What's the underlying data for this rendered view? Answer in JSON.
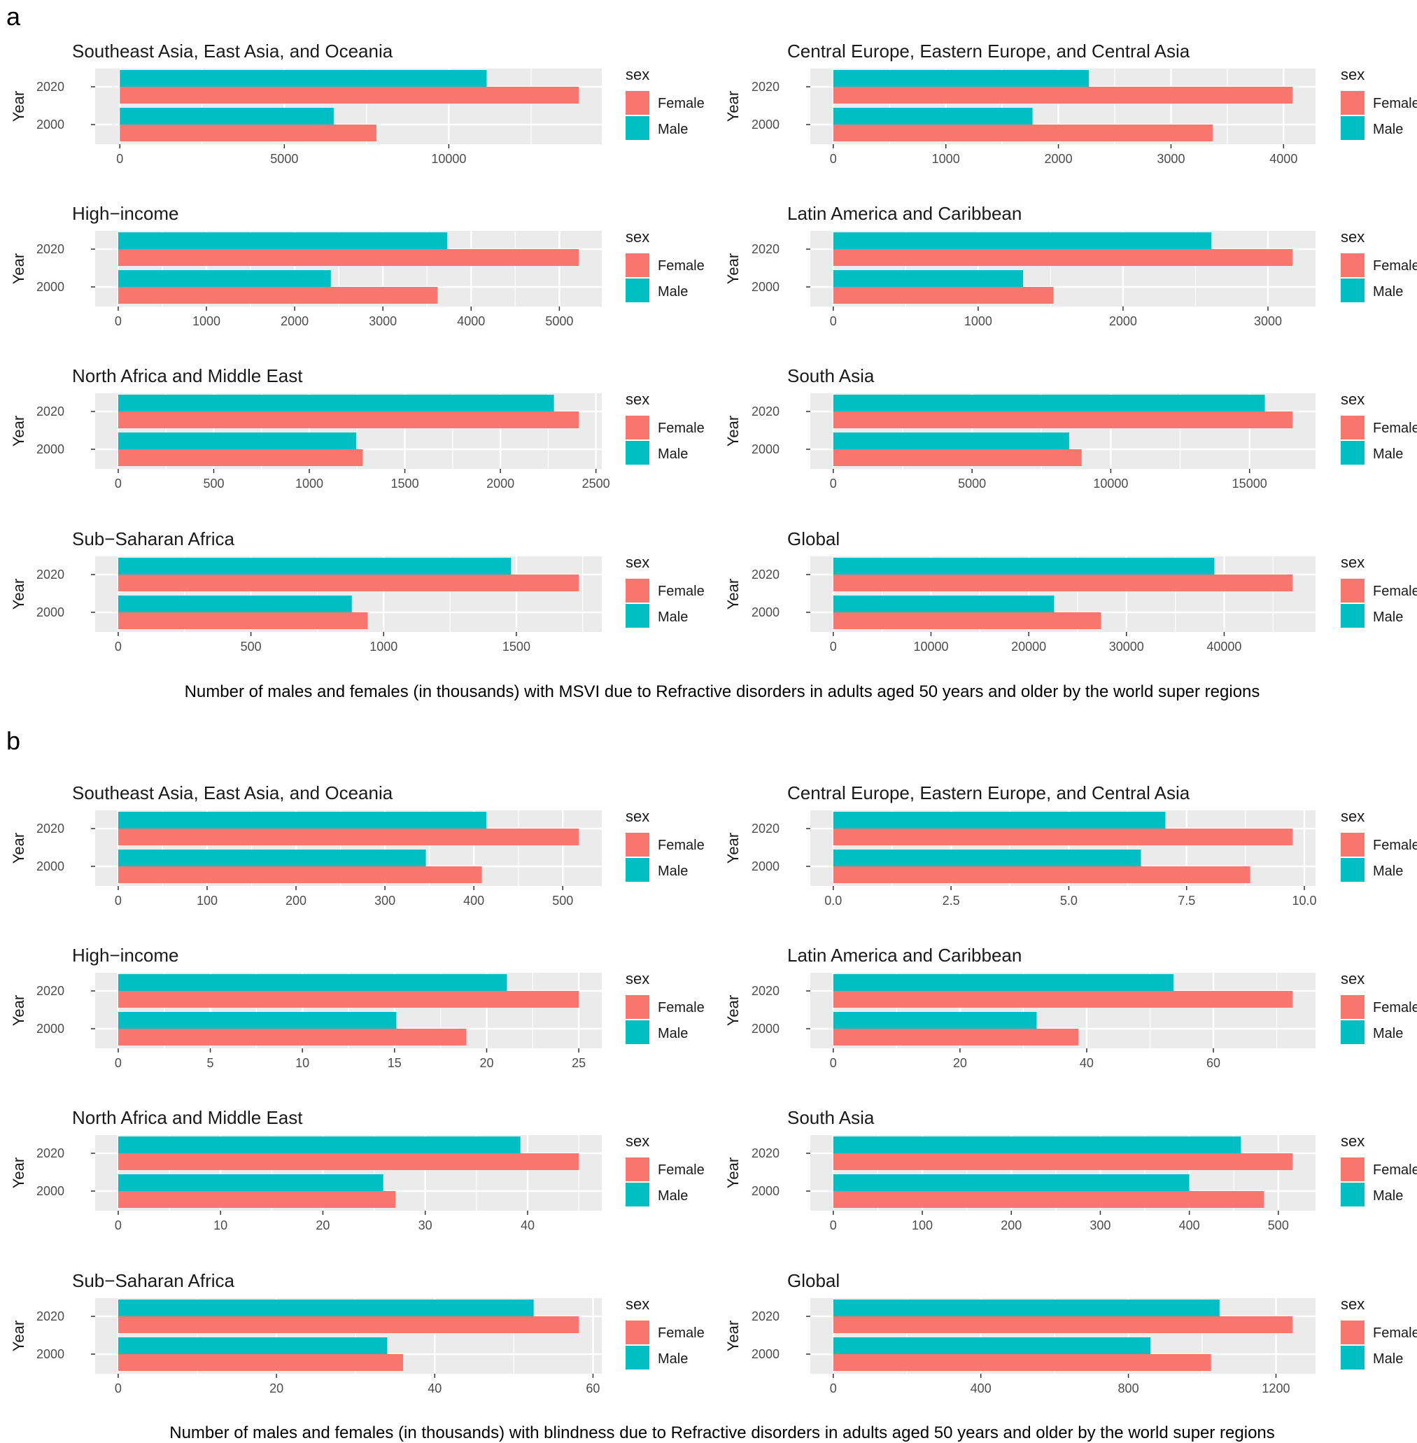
{
  "series_names": [
    "Female",
    "Male"
  ],
  "years": [
    "2020",
    "2000"
  ],
  "legend_title": "sex",
  "y_axis_label": "Year",
  "colors": {
    "Female": "#F8766D",
    "Male": "#00BFC4",
    "panel_bg": "#EBEBEB",
    "grid": "#FFFFFF",
    "text": "#1A1A1A",
    "tick_text": "#4D4D4D"
  },
  "figure_a": {
    "letter": "a",
    "caption": "Number of males and females (in thousands) with MSVI due to Refractive disorders in adults aged 50 years and older by the world super regions"
  },
  "figure_b": {
    "letter": "b",
    "caption": "Number of males and females (in thousands) with blindness due to Refractive disorders in adults aged 50 years and older by the world super regions"
  },
  "chart_data": [
    {
      "figure": "a",
      "type": "bar",
      "title": "Southeast Asia, East Asia, and Oceania",
      "categories": [
        "2020",
        "2000"
      ],
      "series": [
        {
          "name": "Female",
          "values": [
            13950,
            7800
          ]
        },
        {
          "name": "Male",
          "values": [
            11150,
            6500
          ]
        }
      ],
      "xlim": [
        -750,
        14650
      ],
      "ticks": [
        0,
        5000,
        10000
      ],
      "tick_labels": [
        "0",
        "5000",
        "10000"
      ],
      "ylabel": "Year",
      "legend_title": "sex"
    },
    {
      "figure": "a",
      "type": "bar",
      "title": "Central Europe, Eastern Europe, and Central Asia",
      "categories": [
        "2020",
        "2000"
      ],
      "series": [
        {
          "name": "Female",
          "values": [
            4080,
            3370
          ]
        },
        {
          "name": "Male",
          "values": [
            2270,
            1770
          ]
        }
      ],
      "xlim": [
        -204,
        4284
      ],
      "ticks": [
        0,
        1000,
        2000,
        3000,
        4000
      ],
      "tick_labels": [
        "0",
        "1000",
        "2000",
        "3000",
        "4000"
      ],
      "ylabel": "Year",
      "legend_title": "sex"
    },
    {
      "figure": "a",
      "type": "bar",
      "title": "High−income",
      "categories": [
        "2020",
        "2000"
      ],
      "series": [
        {
          "name": "Female",
          "values": [
            5220,
            3620
          ]
        },
        {
          "name": "Male",
          "values": [
            3730,
            2410
          ]
        }
      ],
      "xlim": [
        -261,
        5481
      ],
      "ticks": [
        0,
        1000,
        2000,
        3000,
        4000,
        5000
      ],
      "tick_labels": [
        "0",
        "1000",
        "2000",
        "3000",
        "4000",
        "5000"
      ],
      "ylabel": "Year",
      "legend_title": "sex"
    },
    {
      "figure": "a",
      "type": "bar",
      "title": "Latin America and Caribbean",
      "categories": [
        "2020",
        "2000"
      ],
      "series": [
        {
          "name": "Female",
          "values": [
            3170,
            1520
          ]
        },
        {
          "name": "Male",
          "values": [
            2610,
            1310
          ]
        }
      ],
      "xlim": [
        -158.5,
        3328.5
      ],
      "ticks": [
        0,
        1000,
        2000,
        3000
      ],
      "tick_labels": [
        "0",
        "1000",
        "2000",
        "3000"
      ],
      "ylabel": "Year",
      "legend_title": "sex"
    },
    {
      "figure": "a",
      "type": "bar",
      "title": "North Africa and Middle East",
      "categories": [
        "2020",
        "2000"
      ],
      "series": [
        {
          "name": "Female",
          "values": [
            2410,
            1280
          ]
        },
        {
          "name": "Male",
          "values": [
            2280,
            1245
          ]
        }
      ],
      "xlim": [
        -120.5,
        2530.5
      ],
      "ticks": [
        0,
        500,
        1000,
        1500,
        2000,
        2500
      ],
      "tick_labels": [
        "0",
        "500",
        "1000",
        "1500",
        "2000",
        "2500"
      ],
      "ylabel": "Year",
      "legend_title": "sex"
    },
    {
      "figure": "a",
      "type": "bar",
      "title": "South Asia",
      "categories": [
        "2020",
        "2000"
      ],
      "series": [
        {
          "name": "Female",
          "values": [
            16550,
            8950
          ]
        },
        {
          "name": "Male",
          "values": [
            15550,
            8500
          ]
        }
      ],
      "xlim": [
        -827.5,
        17377.5
      ],
      "ticks": [
        0,
        5000,
        10000,
        15000
      ],
      "tick_labels": [
        "0",
        "5000",
        "10000",
        "15000"
      ],
      "ylabel": "Year",
      "legend_title": "sex"
    },
    {
      "figure": "a",
      "type": "bar",
      "title": "Sub−Saharan Africa",
      "categories": [
        "2020",
        "2000"
      ],
      "series": [
        {
          "name": "Female",
          "values": [
            1735,
            940
          ]
        },
        {
          "name": "Male",
          "values": [
            1480,
            880
          ]
        }
      ],
      "xlim": [
        -86.75,
        1821.75
      ],
      "ticks": [
        0,
        500,
        1000,
        1500
      ],
      "tick_labels": [
        "0",
        "500",
        "1000",
        "1500"
      ],
      "ylabel": "Year",
      "legend_title": "sex"
    },
    {
      "figure": "a",
      "type": "bar",
      "title": "Global",
      "categories": [
        "2020",
        "2000"
      ],
      "series": [
        {
          "name": "Female",
          "values": [
            47000,
            27400
          ]
        },
        {
          "name": "Male",
          "values": [
            39000,
            22600
          ]
        }
      ],
      "xlim": [
        -2350,
        49350
      ],
      "ticks": [
        0,
        10000,
        20000,
        30000,
        40000
      ],
      "tick_labels": [
        "0",
        "10000",
        "20000",
        "30000",
        "40000"
      ],
      "ylabel": "Year",
      "legend_title": "sex"
    },
    {
      "figure": "b",
      "type": "bar",
      "title": "Southeast Asia, East Asia, and Oceania",
      "categories": [
        "2020",
        "2000"
      ],
      "series": [
        {
          "name": "Female",
          "values": [
            518,
            409
          ]
        },
        {
          "name": "Male",
          "values": [
            414,
            346
          ]
        }
      ],
      "xlim": [
        -25.9,
        543.9
      ],
      "ticks": [
        0,
        100,
        200,
        300,
        400,
        500
      ],
      "tick_labels": [
        "0",
        "100",
        "200",
        "300",
        "400",
        "500"
      ],
      "ylabel": "Year",
      "legend_title": "sex"
    },
    {
      "figure": "b",
      "type": "bar",
      "title": "Central Europe, Eastern Europe, and Central Asia",
      "categories": [
        "2020",
        "2000"
      ],
      "series": [
        {
          "name": "Female",
          "values": [
            9.75,
            8.85
          ]
        },
        {
          "name": "Male",
          "values": [
            7.05,
            6.53
          ]
        }
      ],
      "xlim": [
        -0.4875,
        10.2375
      ],
      "ticks": [
        0,
        2.5,
        5,
        7.5,
        10
      ],
      "tick_labels": [
        "0.0",
        "2.5",
        "5.0",
        "7.5",
        "10.0"
      ],
      "ylabel": "Year",
      "legend_title": "sex"
    },
    {
      "figure": "b",
      "type": "bar",
      "title": "High−income",
      "categories": [
        "2020",
        "2000"
      ],
      "series": [
        {
          "name": "Female",
          "values": [
            25,
            18.9
          ]
        },
        {
          "name": "Male",
          "values": [
            21.1,
            15.1
          ]
        }
      ],
      "xlim": [
        -1.25,
        26.25
      ],
      "ticks": [
        0,
        5,
        10,
        15,
        20,
        25
      ],
      "tick_labels": [
        "0",
        "5",
        "10",
        "15",
        "20",
        "25"
      ],
      "ylabel": "Year",
      "legend_title": "sex"
    },
    {
      "figure": "b",
      "type": "bar",
      "title": "Latin America and Caribbean",
      "categories": [
        "2020",
        "2000"
      ],
      "series": [
        {
          "name": "Female",
          "values": [
            72.5,
            38.7
          ]
        },
        {
          "name": "Male",
          "values": [
            53.7,
            32.1
          ]
        }
      ],
      "xlim": [
        -3.625,
        76.125
      ],
      "ticks": [
        0,
        20,
        40,
        60
      ],
      "tick_labels": [
        "0",
        "20",
        "40",
        "60"
      ],
      "ylabel": "Year",
      "legend_title": "sex"
    },
    {
      "figure": "b",
      "type": "bar",
      "title": "North Africa and Middle East",
      "categories": [
        "2020",
        "2000"
      ],
      "series": [
        {
          "name": "Female",
          "values": [
            45,
            27.1
          ]
        },
        {
          "name": "Male",
          "values": [
            39.3,
            25.9
          ]
        }
      ],
      "xlim": [
        -2.25,
        47.25
      ],
      "ticks": [
        0,
        10,
        20,
        30,
        40
      ],
      "tick_labels": [
        "0",
        "10",
        "20",
        "30",
        "40"
      ],
      "ylabel": "Year",
      "legend_title": "sex"
    },
    {
      "figure": "b",
      "type": "bar",
      "title": "South Asia",
      "categories": [
        "2020",
        "2000"
      ],
      "series": [
        {
          "name": "Female",
          "values": [
            516,
            484
          ]
        },
        {
          "name": "Male",
          "values": [
            458,
            400
          ]
        }
      ],
      "xlim": [
        -25.8,
        541.8
      ],
      "ticks": [
        0,
        100,
        200,
        300,
        400,
        500
      ],
      "tick_labels": [
        "0",
        "100",
        "200",
        "300",
        "400",
        "500"
      ],
      "ylabel": "Year",
      "legend_title": "sex"
    },
    {
      "figure": "b",
      "type": "bar",
      "title": "Sub−Saharan Africa",
      "categories": [
        "2020",
        "2000"
      ],
      "series": [
        {
          "name": "Female",
          "values": [
            58.2,
            36
          ]
        },
        {
          "name": "Male",
          "values": [
            52.5,
            34
          ]
        }
      ],
      "xlim": [
        -2.91,
        61.11
      ],
      "ticks": [
        0,
        20,
        40,
        60
      ],
      "tick_labels": [
        "0",
        "20",
        "40",
        "60"
      ],
      "ylabel": "Year",
      "legend_title": "sex"
    },
    {
      "figure": "b",
      "type": "bar",
      "title": "Global",
      "categories": [
        "2020",
        "2000"
      ],
      "series": [
        {
          "name": "Female",
          "values": [
            1245,
            1024
          ]
        },
        {
          "name": "Male",
          "values": [
            1047,
            860
          ]
        }
      ],
      "xlim": [
        -62.25,
        1307.25
      ],
      "ticks": [
        0,
        400,
        800,
        1200
      ],
      "tick_labels": [
        "0",
        "400",
        "800",
        "1200"
      ],
      "ylabel": "Year",
      "legend_title": "sex"
    }
  ]
}
